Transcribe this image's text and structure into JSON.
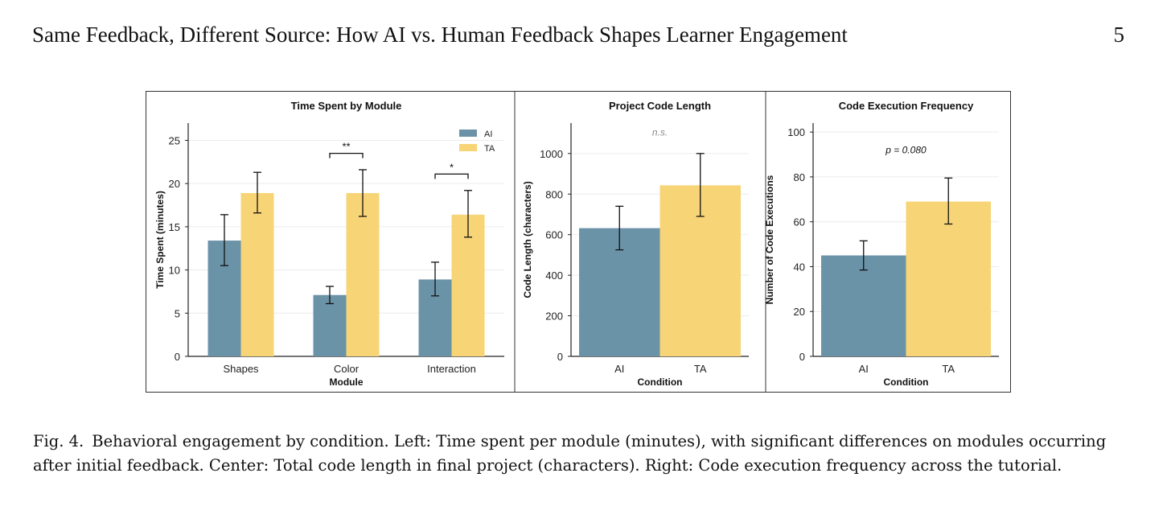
{
  "header": {
    "title": "Same Feedback, Different Source: How AI vs. Human Feedback Shapes Learner Engagement",
    "page_number": "5"
  },
  "caption": {
    "label": "Fig. 4.",
    "text": "Behavioral engagement by condition. Left: Time spent per module (minutes), with significant differences on modules occurring after initial feedback. Center: Total code length in final project (characters). Right: Code execution frequency across the tutorial."
  },
  "colors": {
    "ai": "#6b93a8",
    "ta": "#f7d476",
    "axis": "#222222",
    "grid": "#ececec"
  },
  "chart_data": [
    {
      "type": "bar",
      "title": "Time Spent by Module",
      "xlabel": "Module",
      "ylabel": "Time Spent (minutes)",
      "categories": [
        "Shapes",
        "Color",
        "Interaction"
      ],
      "series": [
        {
          "name": "AI",
          "values": [
            13.4,
            7.1,
            8.9
          ],
          "err_low": [
            10.5,
            6.1,
            7.0
          ],
          "err_high": [
            16.4,
            8.1,
            10.9
          ]
        },
        {
          "name": "TA",
          "values": [
            18.9,
            18.9,
            16.4
          ],
          "err_low": [
            16.6,
            16.2,
            13.8
          ],
          "err_high": [
            21.3,
            21.6,
            19.2
          ]
        }
      ],
      "ylim": [
        0,
        27
      ],
      "yticks": [
        0,
        5,
        10,
        15,
        20,
        25
      ],
      "legend": "top-right",
      "grid": true,
      "annotations": [
        {
          "text": "**",
          "category": "Color",
          "level": 23.5
        },
        {
          "text": "*",
          "category": "Interaction",
          "level": 21.1
        }
      ]
    },
    {
      "type": "bar",
      "title": "Project Code Length",
      "xlabel": "Condition",
      "ylabel": "Code Length (characters)",
      "categories": [
        "AI",
        "TA"
      ],
      "values": [
        632,
        843
      ],
      "err_low": [
        525,
        690
      ],
      "err_high": [
        740,
        1000
      ],
      "ylim": [
        0,
        1150
      ],
      "yticks": [
        0,
        200,
        400,
        600,
        800,
        1000
      ],
      "grid": true,
      "annotation": "n.s.",
      "annotation_value": 1105
    },
    {
      "type": "bar",
      "title": "Code Execution Frequency",
      "xlabel": "Condition",
      "ylabel": "Number of Code Executions",
      "categories": [
        "AI",
        "TA"
      ],
      "values": [
        45,
        69
      ],
      "err_low": [
        38.5,
        59
      ],
      "err_high": [
        51.5,
        79.5
      ],
      "ylim": [
        0,
        104
      ],
      "yticks": [
        0,
        20,
        40,
        60,
        80,
        100
      ],
      "grid": true,
      "annotation": "p = 0.080",
      "annotation_value": 92
    }
  ]
}
